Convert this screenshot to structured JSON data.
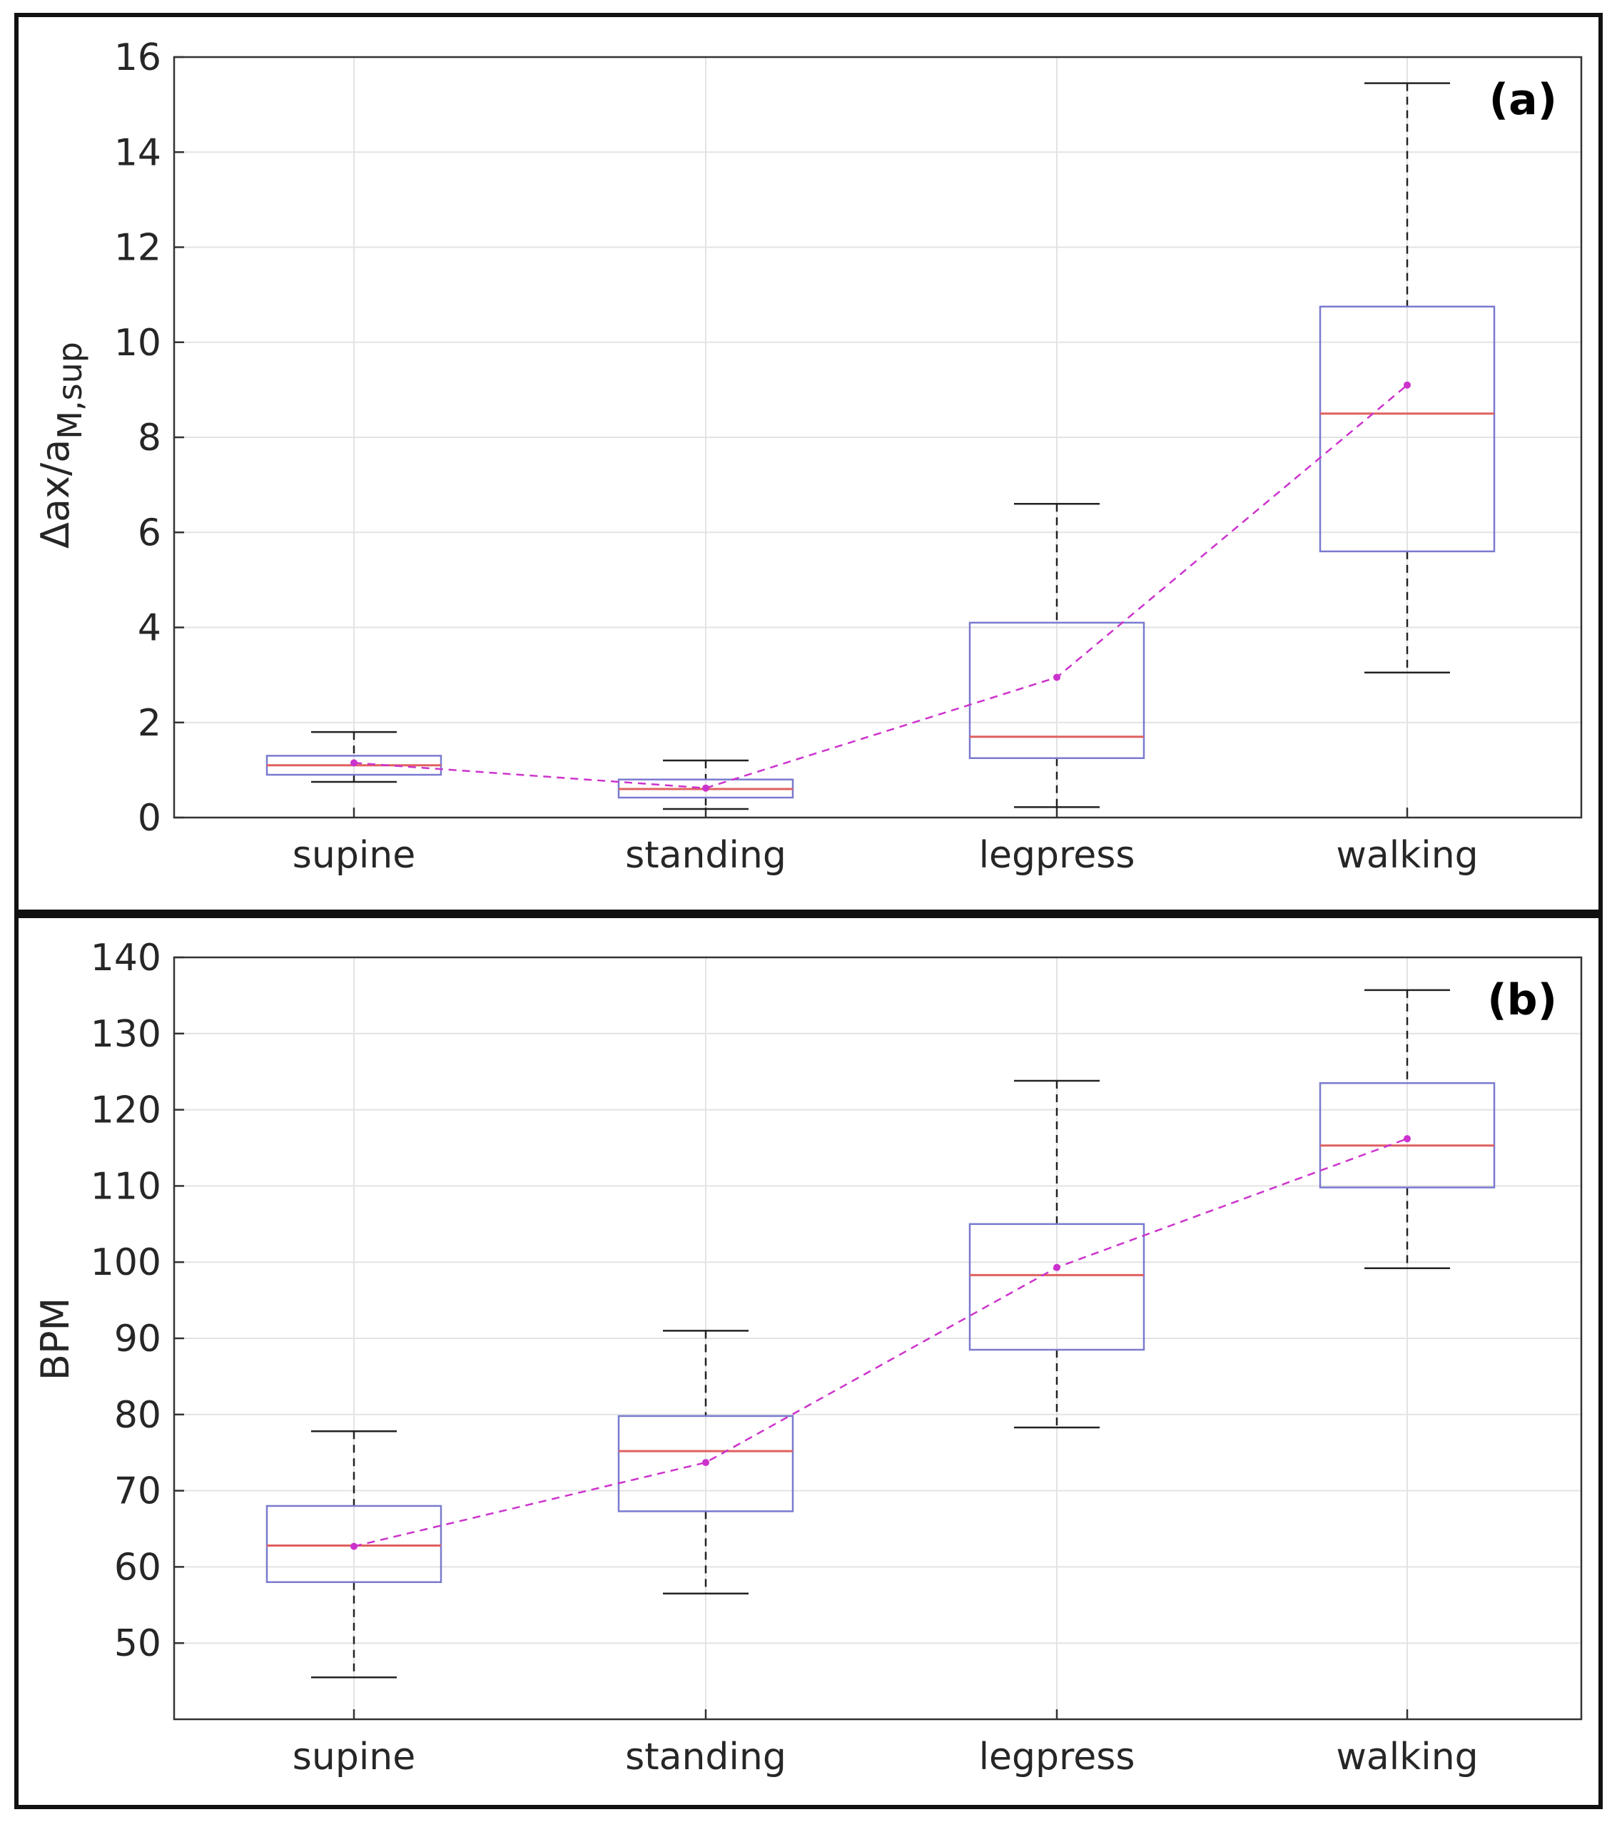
{
  "chart_data": [
    {
      "type": "box",
      "panel_label": "(a)",
      "ylabel_main": "Δax/a",
      "ylabel_sub": "M,sup",
      "xlabel": "",
      "categories": [
        "supine",
        "standing",
        "legpress",
        "walking"
      ],
      "ylim": [
        0,
        16
      ],
      "yticks": [
        0,
        2,
        4,
        6,
        8,
        10,
        12,
        14,
        16
      ],
      "grid": true,
      "boxes": [
        {
          "whisker_low": 0.75,
          "q1": 0.9,
          "median": 1.1,
          "q3": 1.3,
          "whisker_high": 1.8
        },
        {
          "whisker_low": 0.18,
          "q1": 0.42,
          "median": 0.6,
          "q3": 0.8,
          "whisker_high": 1.2
        },
        {
          "whisker_low": 0.22,
          "q1": 1.25,
          "median": 1.7,
          "q3": 4.1,
          "whisker_high": 6.6
        },
        {
          "whisker_low": 3.05,
          "q1": 5.6,
          "median": 8.5,
          "q3": 10.75,
          "whisker_high": 15.45
        }
      ],
      "mean_series": [
        1.15,
        0.62,
        2.95,
        9.1
      ]
    },
    {
      "type": "box",
      "panel_label": "(b)",
      "ylabel_main": "BPM",
      "ylabel_sub": "",
      "xlabel": "",
      "categories": [
        "supine",
        "standing",
        "legpress",
        "walking"
      ],
      "ylim": [
        40,
        140
      ],
      "yticks": [
        50,
        60,
        70,
        80,
        90,
        100,
        110,
        120,
        130,
        140
      ],
      "grid": true,
      "boxes": [
        {
          "whisker_low": 45.5,
          "q1": 58,
          "median": 62.8,
          "q3": 68,
          "whisker_high": 77.8
        },
        {
          "whisker_low": 56.5,
          "q1": 67.3,
          "median": 75.2,
          "q3": 79.8,
          "whisker_high": 91
        },
        {
          "whisker_low": 78.3,
          "q1": 88.5,
          "median": 98.3,
          "q3": 105,
          "whisker_high": 123.8
        },
        {
          "whisker_low": 99.2,
          "q1": 109.8,
          "median": 115.3,
          "q3": 123.5,
          "whisker_high": 135.7
        }
      ],
      "mean_series": [
        62.7,
        73.7,
        99.3,
        116.2
      ]
    }
  ],
  "colors": {
    "box": "#7a7ad0",
    "median": "#e06060",
    "mean": "#cc33cc",
    "whisker": "#222222",
    "grid": "#e3e3e3"
  }
}
